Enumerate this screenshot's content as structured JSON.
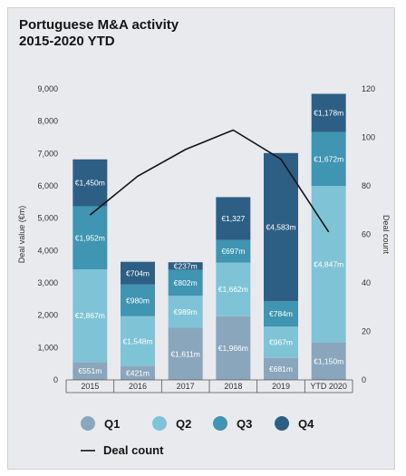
{
  "header": {
    "title_line1": "Portuguese M&A activity",
    "title_line2": "2015-2020 YTD"
  },
  "chart_data": {
    "type": "bar",
    "stacked": true,
    "categories": [
      "2015",
      "2016",
      "2017",
      "2018",
      "2019",
      "YTD 2020"
    ],
    "ylabel": "Deal value (€m)",
    "ylim": [
      0,
      9000
    ],
    "yticks": [
      "0",
      "1,000",
      "2,000",
      "3,000",
      "4,000",
      "5,000",
      "6,000",
      "7,000",
      "8,000",
      "9,000"
    ],
    "y2label": "Deal count",
    "y2lim": [
      0,
      120
    ],
    "y2ticks": [
      "0",
      "20",
      "40",
      "60",
      "80",
      "100",
      "120"
    ],
    "grid": false,
    "legend_position": "bottom",
    "series": [
      {
        "name": "Q1",
        "color": "#8aa6bd",
        "values": [
          551,
          421,
          1611,
          1966,
          681,
          1150
        ],
        "labels": [
          "€551m",
          "€421m",
          "€1,611m",
          "€1,966m",
          "€681m",
          "€1,150m"
        ]
      },
      {
        "name": "Q2",
        "color": "#7ec4d6",
        "values": [
          2867,
          1548,
          989,
          1662,
          967,
          4847
        ],
        "labels": [
          "€2,867m",
          "€1,548m",
          "€989m",
          "€1,662m",
          "€967m",
          "€4,847m"
        ]
      },
      {
        "name": "Q3",
        "color": "#3f95b2",
        "values": [
          1952,
          980,
          802,
          697,
          784,
          1672
        ],
        "labels": [
          "€1,952m",
          "€980m",
          "€802m",
          "€697m",
          "€784m",
          "€1,672m"
        ]
      },
      {
        "name": "Q4",
        "color": "#2d5f85",
        "values": [
          1450,
          704,
          237,
          1327,
          4583,
          1178
        ],
        "labels": [
          "€1,450m",
          "€704m",
          "€237m",
          "€1,327",
          "€4,583m",
          "€1,178m"
        ]
      }
    ],
    "line": {
      "name": "Deal count",
      "color": "#141414",
      "values": [
        68,
        84,
        95,
        103,
        91,
        61
      ]
    }
  }
}
